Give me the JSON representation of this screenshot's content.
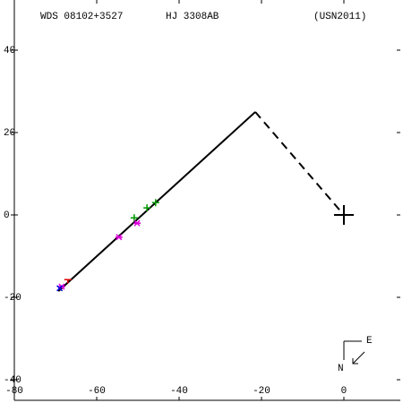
{
  "chart_data": {
    "type": "scatter",
    "labels": {
      "wds": "WDS 08102+3527",
      "name": "HJ 3308AB",
      "reference": "(USN2011)"
    },
    "compass": {
      "east": "E",
      "north": "N"
    },
    "xlim": [
      -80,
      13.7
    ],
    "ylim": [
      -45,
      50
    ],
    "xticks": [
      -80,
      -60,
      -40,
      -20,
      0
    ],
    "yticks": [
      -40,
      -20,
      0,
      20,
      40
    ],
    "primary": {
      "x": 0,
      "y": 0
    },
    "lines": [
      {
        "style": "solid",
        "color": "#000000",
        "x": [
          -69.3,
          -21.5
        ],
        "y": [
          -18.5,
          25
        ]
      },
      {
        "style": "dashed",
        "color": "#000000",
        "x": [
          -21.5,
          0
        ],
        "y": [
          25,
          0
        ]
      }
    ],
    "series": [
      {
        "marker": "+",
        "color": "#009900",
        "x": [
          -45.7,
          -47.8,
          -50.9
        ],
        "y": [
          3.0,
          1.7,
          -0.7
        ]
      },
      {
        "marker": "*",
        "color": "#dd00dd",
        "x": [
          -54.6,
          -50.2,
          -68.5
        ],
        "y": [
          -5.4,
          -2.0,
          -17.4
        ]
      },
      {
        "marker": "-",
        "color": "#dd0000",
        "x": [
          -67.0
        ],
        "y": [
          -15.7
        ]
      },
      {
        "marker": "x",
        "color": "#0000dd",
        "x": [
          -69.0
        ],
        "y": [
          -17.8
        ]
      }
    ]
  }
}
